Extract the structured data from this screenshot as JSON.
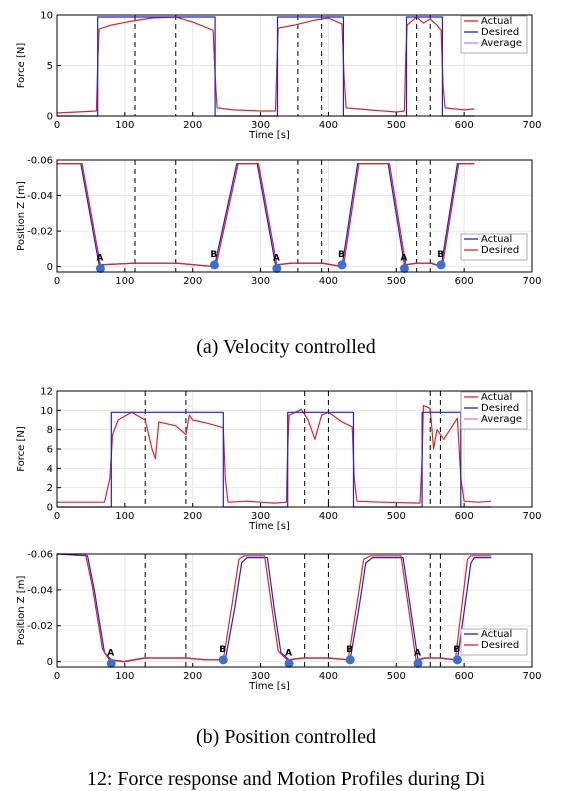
{
  "captions": {
    "a": "(a) Velocity controlled",
    "b": "(b) Position controlled",
    "figure": "12: Force response and Motion Profiles during Di"
  },
  "chart_data": [
    {
      "id": "a_force",
      "type": "line",
      "xlabel": "Time [s]",
      "ylabel": "Force [N]",
      "xlim": [
        0,
        700
      ],
      "ylim": [
        0,
        10
      ],
      "xticks": [
        0,
        100,
        200,
        300,
        400,
        500,
        600,
        700
      ],
      "yticks": [
        0,
        5,
        10
      ],
      "grid": true,
      "legend": "top-right",
      "vlines": [
        115,
        175,
        355,
        390,
        530,
        550
      ],
      "series": [
        {
          "name": "Actual",
          "color": "#d62728",
          "x": [
            0,
            58,
            60,
            62,
            80,
            110,
            140,
            175,
            200,
            230,
            233,
            236,
            260,
            300,
            322,
            324,
            326,
            350,
            380,
            400,
            420,
            423,
            426,
            460,
            500,
            512,
            514,
            516,
            530,
            540,
            550,
            560,
            566,
            569,
            572,
            600,
            615
          ],
          "y": [
            0.3,
            0.5,
            5,
            8.6,
            9,
            9.4,
            9.7,
            9.8,
            9.3,
            8.5,
            4,
            0.8,
            0.6,
            0.5,
            0.5,
            5,
            8.7,
            9,
            9.5,
            9.7,
            9.1,
            4,
            0.8,
            0.6,
            0.4,
            0.5,
            6,
            9,
            9.8,
            9.2,
            9.6,
            9,
            8.5,
            3,
            0.8,
            0.6,
            0.7
          ]
        },
        {
          "name": "Desired",
          "color": "#1f1fd6",
          "x": [
            0,
            60,
            60,
            233,
            233,
            325,
            325,
            422,
            422,
            515,
            515,
            568,
            568,
            615
          ],
          "y": [
            0,
            0,
            9.8,
            9.8,
            0,
            0,
            9.8,
            9.8,
            0,
            0,
            9.8,
            9.8,
            0,
            0
          ]
        },
        {
          "name": "Average",
          "color": "#e377c2",
          "x": [],
          "y": []
        }
      ]
    },
    {
      "id": "a_position",
      "type": "line",
      "xlabel": "",
      "ylabel": "Position Z [m]",
      "xlim": [
        0,
        700
      ],
      "ylim": [
        0.003,
        -0.06
      ],
      "xticks": [
        0,
        100,
        200,
        300,
        400,
        500,
        600,
        700
      ],
      "yticks": [
        -0.06,
        -0.04,
        -0.02,
        0
      ],
      "grid": true,
      "legend": "bottom-right",
      "vlines": [
        115,
        175,
        355,
        390,
        530,
        550
      ],
      "series": [
        {
          "name": "Actual",
          "color": "#1f1fd6",
          "x": [
            0,
            35,
            62,
            115,
            175,
            232,
            265,
            295,
            322,
            345,
            390,
            420,
            443,
            473,
            488,
            512,
            530,
            550,
            566,
            590,
            600,
            615
          ],
          "y": [
            -0.058,
            -0.058,
            -0.001,
            -0.002,
            -0.002,
            0.0,
            -0.058,
            -0.058,
            -0.001,
            -0.002,
            -0.002,
            0.0,
            -0.058,
            -0.058,
            -0.058,
            -0.001,
            -0.002,
            -0.002,
            0.0,
            -0.058,
            -0.058,
            -0.058
          ]
        },
        {
          "name": "Desired",
          "color": "#d62728",
          "x": [
            0,
            37,
            64,
            117,
            177,
            234,
            267,
            297,
            324,
            347,
            392,
            422,
            445,
            475,
            490,
            514,
            532,
            552,
            568,
            592,
            602,
            615
          ],
          "y": [
            -0.058,
            -0.058,
            -0.001,
            -0.002,
            -0.002,
            0.0,
            -0.058,
            -0.058,
            -0.001,
            -0.002,
            -0.002,
            0.0,
            -0.058,
            -0.058,
            -0.058,
            -0.001,
            -0.002,
            -0.002,
            0.0,
            -0.058,
            -0.058,
            -0.058
          ]
        }
      ],
      "markers": [
        {
          "label": "A",
          "x": 64,
          "y": 0.001
        },
        {
          "label": "B",
          "x": 232,
          "y": -0.001
        },
        {
          "label": "A",
          "x": 324,
          "y": 0.001
        },
        {
          "label": "B",
          "x": 420,
          "y": -0.001
        },
        {
          "label": "A",
          "x": 512,
          "y": 0.001
        },
        {
          "label": "B",
          "x": 566,
          "y": -0.001
        }
      ]
    },
    {
      "id": "b_force",
      "type": "line",
      "xlabel": "Time [s]",
      "ylabel": "Force [N]",
      "xlim": [
        0,
        700
      ],
      "ylim": [
        0,
        12
      ],
      "xticks": [
        0,
        100,
        200,
        300,
        400,
        500,
        600,
        700
      ],
      "yticks": [
        0,
        2,
        4,
        6,
        8,
        10,
        12
      ],
      "grid": true,
      "legend": "top-right",
      "vlines": [
        130,
        190,
        365,
        400,
        550,
        565
      ],
      "series": [
        {
          "name": "Actual",
          "color": "#d62728",
          "x": [
            0,
            70,
            78,
            82,
            90,
            110,
            130,
            140,
            145,
            150,
            175,
            190,
            195,
            200,
            220,
            245,
            248,
            252,
            280,
            320,
            338,
            340,
            342,
            360,
            370,
            380,
            390,
            400,
            420,
            435,
            438,
            442,
            480,
            535,
            538,
            540,
            550,
            555,
            560,
            570,
            590,
            595,
            600,
            620,
            640
          ],
          "y": [
            0.5,
            0.5,
            3,
            7.5,
            9,
            9.8,
            9,
            6,
            5,
            8.8,
            8.4,
            7.5,
            9.5,
            9,
            8.7,
            8.2,
            3,
            0.5,
            0.6,
            0.4,
            0.5,
            6,
            9.5,
            10.1,
            9,
            7,
            9.5,
            9.8,
            8.8,
            8.3,
            3,
            0.6,
            0.5,
            0.4,
            5,
            10.5,
            10.2,
            6,
            8,
            7,
            9.2,
            3,
            0.6,
            0.5,
            0.6
          ]
        },
        {
          "name": "Desired",
          "color": "#1f1fd6",
          "x": [
            0,
            80,
            80,
            245,
            245,
            340,
            340,
            437,
            437,
            538,
            538,
            595,
            595,
            640
          ],
          "y": [
            0,
            0,
            9.8,
            9.8,
            0,
            0,
            9.8,
            9.8,
            0,
            0,
            9.8,
            9.8,
            0,
            0
          ]
        },
        {
          "name": "Average",
          "color": "#e377c2",
          "x": [],
          "y": []
        }
      ]
    },
    {
      "id": "b_position",
      "type": "line",
      "xlabel": "Time [s]",
      "ylabel": "Position Z [m]",
      "xlim": [
        0,
        700
      ],
      "ylim": [
        0.003,
        -0.06
      ],
      "xticks": [
        0,
        100,
        200,
        300,
        400,
        500,
        600,
        700
      ],
      "yticks": [
        -0.06,
        -0.04,
        -0.02,
        0
      ],
      "grid": true,
      "legend": "bottom-right",
      "vlines": [
        130,
        190,
        365,
        400,
        550,
        565
      ],
      "series": [
        {
          "name": "Actual",
          "color": "#1f1fd6",
          "x": [
            0,
            45,
            55,
            70,
            80,
            100,
            130,
            190,
            220,
            248,
            262,
            272,
            280,
            310,
            320,
            330,
            342,
            365,
            400,
            432,
            445,
            455,
            465,
            490,
            510,
            532,
            545,
            565,
            590,
            610,
            615,
            630,
            640
          ],
          "y": [
            -0.06,
            -0.059,
            -0.04,
            -0.005,
            -0.001,
            0.0,
            -0.002,
            -0.002,
            -0.001,
            -0.001,
            -0.03,
            -0.055,
            -0.058,
            -0.058,
            -0.03,
            -0.005,
            -0.001,
            -0.002,
            -0.002,
            -0.001,
            -0.03,
            -0.055,
            -0.058,
            -0.058,
            -0.058,
            -0.001,
            -0.002,
            -0.002,
            -0.001,
            -0.055,
            -0.058,
            -0.058,
            -0.058
          ]
        },
        {
          "name": "Desired",
          "color": "#d62728",
          "x": [
            0,
            42,
            52,
            67,
            77,
            97,
            128,
            188,
            218,
            245,
            258,
            268,
            276,
            306,
            316,
            326,
            339,
            362,
            397,
            429,
            442,
            452,
            462,
            487,
            507,
            529,
            542,
            562,
            587,
            605,
            610,
            625,
            640
          ],
          "y": [
            -0.06,
            -0.06,
            -0.042,
            -0.007,
            -0.001,
            0.0,
            -0.002,
            -0.002,
            -0.001,
            -0.001,
            -0.032,
            -0.057,
            -0.059,
            -0.059,
            -0.032,
            -0.006,
            -0.001,
            -0.002,
            -0.002,
            -0.001,
            -0.032,
            -0.057,
            -0.059,
            -0.059,
            -0.059,
            -0.001,
            -0.002,
            -0.002,
            -0.001,
            -0.057,
            -0.059,
            -0.059,
            -0.059
          ]
        }
      ],
      "markers": [
        {
          "label": "A",
          "x": 80,
          "y": 0.001
        },
        {
          "label": "B",
          "x": 245,
          "y": -0.001
        },
        {
          "label": "A",
          "x": 342,
          "y": 0.001
        },
        {
          "label": "B",
          "x": 432,
          "y": -0.001
        },
        {
          "label": "A",
          "x": 532,
          "y": 0.001
        },
        {
          "label": "B",
          "x": 590,
          "y": -0.001
        }
      ]
    }
  ]
}
